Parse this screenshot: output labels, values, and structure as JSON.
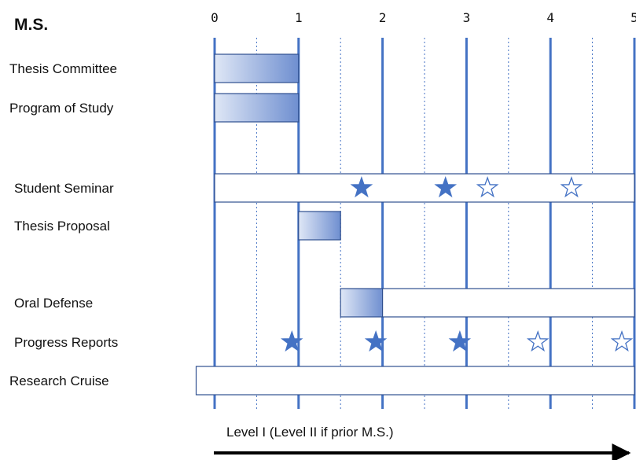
{
  "title": "M.S.",
  "axis": {
    "ticks": [
      "0",
      "1",
      "2",
      "3",
      "4",
      "5"
    ],
    "range": [
      0,
      5
    ],
    "minor_gridlines": "dotted at half-years"
  },
  "colors": {
    "line": "#4472c4",
    "star": "#4472c4",
    "bar_border": "#2f4f8f",
    "gradient_start": "#dfe7f6",
    "gradient_end": "#6f8fd0",
    "arrow": "#000000"
  },
  "rows": [
    {
      "label": "Thesis Committee",
      "bars": [
        {
          "start": 0,
          "end": 1,
          "fill": "gradient"
        }
      ],
      "stars": []
    },
    {
      "label": "Program of Study",
      "bars": [
        {
          "start": 0,
          "end": 1,
          "fill": "gradient"
        }
      ],
      "stars": []
    },
    {
      "label": "Student Seminar",
      "bars": [
        {
          "start": 0,
          "end": 5,
          "fill": "white"
        }
      ],
      "stars": [
        {
          "x": 1.75,
          "filled": true
        },
        {
          "x": 2.75,
          "filled": true
        },
        {
          "x": 3.25,
          "filled": false
        },
        {
          "x": 4.25,
          "filled": false
        }
      ]
    },
    {
      "label": "Thesis Proposal",
      "bars": [
        {
          "start": 1,
          "end": 1.5,
          "fill": "gradient"
        }
      ],
      "stars": []
    },
    {
      "label": "Oral Defense",
      "bars": [
        {
          "start": 1.5,
          "end": 2,
          "fill": "gradient"
        },
        {
          "start": 2,
          "end": 5,
          "fill": "white"
        }
      ],
      "stars": []
    },
    {
      "label": "Progress Reports",
      "bars": [],
      "stars": [
        {
          "x": 0.92,
          "filled": true
        },
        {
          "x": 1.92,
          "filled": true
        },
        {
          "x": 2.92,
          "filled": true
        },
        {
          "x": 3.85,
          "filled": false
        },
        {
          "x": 4.85,
          "filled": false
        }
      ]
    },
    {
      "label": "Research Cruise",
      "bars": [
        {
          "start": -0.22,
          "end": 5,
          "fill": "white"
        }
      ],
      "stars": []
    }
  ],
  "footer": {
    "level_text": "Level I (Level II if prior M.S.)"
  }
}
